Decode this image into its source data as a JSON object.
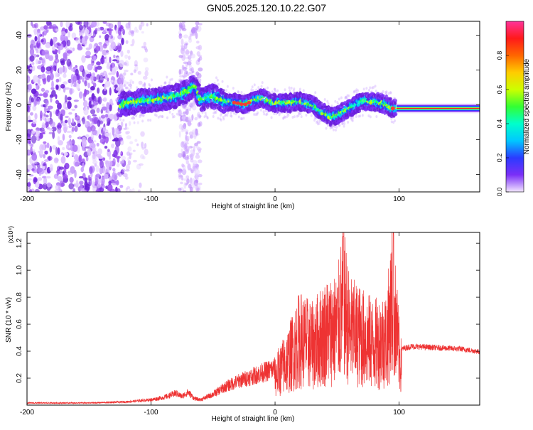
{
  "title": "GN05.2025.120.10.22.G07",
  "chart_data": [
    {
      "type": "heatmap",
      "xlabel": "Height of straight line (km)",
      "ylabel": "Frequency (Hz)",
      "xlim": [
        -200,
        165
      ],
      "ylim": [
        -50,
        48
      ],
      "xticks": [
        -200,
        -100,
        0,
        100
      ],
      "yticks": [
        -40,
        -20,
        0,
        20,
        40
      ],
      "colorbar": {
        "label": "Normalized spectral amplitude",
        "range": [
          0,
          1
        ],
        "ticks": [
          0.0,
          0.2,
          0.4,
          0.6,
          0.8
        ],
        "tick_labels": [
          "0.0",
          "0.2",
          "0.4",
          "0.6",
          "0.8"
        ],
        "colormap": [
          "#f2e6ff",
          "#7b2ff7",
          "#2b3bff",
          "#00c8ff",
          "#00ffcc",
          "#33ff33",
          "#ccff00",
          "#ffcc00",
          "#ff6600",
          "#ff1a1a",
          "#ff3399"
        ]
      },
      "trace_x": [
        -125,
        -110,
        -95,
        -80,
        -70,
        -65,
        -60,
        -50,
        -40,
        -30,
        -25,
        -15,
        -10,
        -5,
        0,
        10,
        20,
        30,
        40,
        45,
        50,
        60,
        70,
        80,
        90,
        95,
        100,
        165
      ],
      "trace_y": [
        0,
        2,
        3,
        5,
        8,
        11,
        3,
        5,
        2,
        1,
        0,
        3,
        4,
        2,
        1,
        1,
        2,
        0,
        -5,
        -7,
        -6,
        -2,
        2,
        2,
        0,
        -2,
        -2,
        -2
      ],
      "grid": false
    },
    {
      "type": "line",
      "xlabel": "Height of straight line (km)",
      "ylabel": "SNR (10 * v/v)",
      "yscale_label": "(x10⁴)",
      "xlim": [
        -200,
        165
      ],
      "ylim": [
        0,
        1.28
      ],
      "xticks": [
        -200,
        -100,
        0,
        100
      ],
      "yticks": [
        0.2,
        0.4,
        0.6,
        0.8,
        1.0,
        1.2
      ],
      "color": "#ee3333",
      "series": [
        {
          "x": [
            -200,
            -150,
            -120,
            -100,
            -90,
            -85,
            -80,
            -75,
            -70,
            -65,
            -60,
            -50,
            -40,
            -30,
            -20,
            -10,
            0,
            10,
            20,
            30,
            40,
            50,
            55,
            60,
            70,
            80,
            90,
            95,
            100,
            102,
            110,
            130,
            150,
            165
          ],
          "y": [
            0.02,
            0.02,
            0.03,
            0.05,
            0.07,
            0.09,
            0.11,
            0.08,
            0.12,
            0.06,
            0.05,
            0.1,
            0.17,
            0.22,
            0.26,
            0.3,
            0.34,
            0.52,
            0.78,
            0.7,
            0.85,
            0.9,
            1.25,
            0.88,
            0.8,
            0.72,
            0.78,
            1.28,
            0.6,
            0.42,
            0.44,
            0.43,
            0.42,
            0.4
          ]
        }
      ],
      "grid": false
    }
  ]
}
